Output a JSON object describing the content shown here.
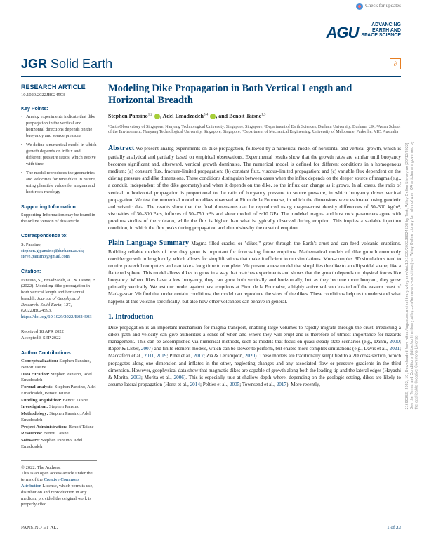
{
  "checkUpdates": "Check for updates",
  "sideText": "21699356, 2022, 10, Downloaded from https://agupubs.onlinelibrary.wiley.com/doi/10.1029/2022JB024593 by Test, Wiley Online Library on [20/12/2022]. See the Terms and Conditions (https://onlinelibrary.wiley.com/terms-and-conditions) on Wiley Online Library for rules of use; OA articles are governed by the applicable Creative Commons License",
  "aguTagline1": "ADVANCING",
  "aguTagline2": "EARTH AND",
  "aguTagline3": "SPACE SCIENCE",
  "journalPrefix": "JGR",
  "journalName": "Solid Earth",
  "openBadge": "∂",
  "left": {
    "researchArticle": "RESEARCH ARTICLE",
    "doi": "10.1029/2022JB024593",
    "keyPointsLabel": "Key Points:",
    "keyPoints": [
      "Analog experiments indicate that dike propagation in the vertical and horizontal directions depends on the buoyancy and source pressure",
      "We define a numerical model in which growth depends on influx and different pressure ratios, which evolve with time",
      "The model reproduces the geometries and velocities for nine dikes in nature, using plausible values for magma and host rock rheology"
    ],
    "supportingLabel": "Supporting Information:",
    "supportingText": "Supporting Information may be found in the online version of this article.",
    "correspondenceLabel": "Correspondence to:",
    "correspondenceName": "S. Pansino,",
    "correspondenceEmail1": "stephen.g.pansino@durham.ac.uk;",
    "correspondenceEmail2": "steve.pansino@gmail.com",
    "citationLabel": "Citation:",
    "citationText1": "Pansino, S., Emadzadeh, A., & Taisne, B. (2022). Modeling dike propagation in both vertical length and horizontal breadth. ",
    "citationItalic": "Journal of Geophysical Research: Solid Earth",
    "citationText2": ", 127, e2022JB024593. ",
    "citationLink": "https://doi.org/10.1029/2022JB024593",
    "received": "Received 18 APR 2022",
    "accepted": "Accepted 8 SEP 2022",
    "contribLabel": "Author Contributions:",
    "contrib": [
      {
        "role": "Conceptualization:",
        "names": "Stephen Pansino, Benoit Taisne"
      },
      {
        "role": "Data curation:",
        "names": "Stephen Pansino, Adel Emadzadeh"
      },
      {
        "role": "Formal analysis:",
        "names": "Stephen Pansino, Adel Emadzadeh, Benoit Taisne"
      },
      {
        "role": "Funding acquisition:",
        "names": "Benoit Taisne"
      },
      {
        "role": "Investigation:",
        "names": "Stephen Pansino"
      },
      {
        "role": "Methodology:",
        "names": "Stephen Pansino, Adel Emadzadeh"
      },
      {
        "role": "Project Administration:",
        "names": "Benoit Taisne"
      },
      {
        "role": "Resources:",
        "names": "Benoit Taisne"
      },
      {
        "role": "Software:",
        "names": "Stephen Pansino, Adel Emadzadeh"
      }
    ],
    "copyright": "© 2022. The Authors.",
    "copyrightText1": "This is an open access article under the terms of the ",
    "copyrightLink": "Creative Commons Attribution",
    "copyrightText2": " License, which permits use, distribution and reproduction in any medium, provided the original work is properly cited."
  },
  "paper": {
    "title": "Modeling Dike Propagation in Both Vertical Length and Horizontal Breadth",
    "author1": "Stephen Pansino",
    "author1sup": "1,2",
    "author2": "Adel Emadzadeh",
    "author2sup": "3,4",
    "author3": "Benoit Taisne",
    "author3sup": "1,3",
    "and": ", and ",
    "comma": ", ",
    "affiliations": "¹Earth Observatory of Singapore, Nanyang Technological University, Singapore, Singapore, ²Department of Earth Sciences, Durham University, Durham, UK, ³Asian School of the Environment, Nanyang Technological University, Singapore, Singapore, ⁴Department of Mechanical Engineering, University of Melbourne, Parkville, VIC, Australia",
    "abstractLabel": "Abstract",
    "abstract": " We present analog experiments on dike propagation, followed by a numerical model of horizontal and vertical growth, which is partially analytical and partially based on empirical observations. Experimental results show that the growth rates are similar until buoyancy becomes significant and, afterward, vertical growth dominates. The numerical model is defined for different conditions in a homogenous medium: (a) constant flux, fracture-limited propagation; (b) constant flux, viscous-limited propagation; and (c) variable flux dependent on the driving pressure and dike dimensions. These conditions distinguish between cases when the influx depends on the deeper source of magma (e.g., a conduit, independent of the dike geometry) and when it depends on the dike, so the influx can change as it grows. In all cases, the ratio of vertical to horizontal propagation is proportional to the ratio of buoyancy pressure to source pressure, in which buoyancy drives vertical propagation. We test the numerical model on dikes observed at Piton de la Fournaise, in which the dimensions were estimated using geodetic and seismic data. The results show that the final dimensions can be reproduced using magma-crust density differences of 50–300 kg/m³, viscosities of 30–300 Pa·s, influxes of 50–750 m³/s and shear moduli of ∼10 GPa. The modeled magma and host rock parameters agree with previous studies of the volcano, while the flux is higher than what is typically observed during eruption. This implies a variable injection condition, in which the flux peaks during propagation and diminishes by the onset of eruption.",
    "plainLabel": "Plain Language Summary",
    "plain": " Magma-filled cracks, or \"dikes,\" grow through the Earth's crust and can feed volcanic eruptions. Building reliable models of how they grow is important for forecasting future eruptions. Mathematical models of dike growth commonly consider growth in length only, which allows for simplifications that make it efficient to run simulations. More-complex 3D simulations tend to require powerful computers and can take a long time to complete. We present a new model that simplifies the dike to an ellipsoidal shape, like a flattened sphere. This model allows dikes to grow in a way that matches experiments and shows that the growth depends on physical forces like buoyancy. When dikes have a low buoyancy, they can grow both vertically and horizontally, but as they become more buoyant, they grow primarily vertically. We test our model against past eruptions at Piton de la Fournaise, a highly active volcano located off the eastern coast of Madagascar. We find that under certain conditions, the model can reproduce the sizes of the dikes. These conditions help us to understand what happens at this volcano specifically, but also how other volcanoes can behave in general.",
    "introHeading": "1. Introduction",
    "introText": "Dike propagation is an important mechanism for magma transport, enabling large volumes to rapidly migrate through the crust. Predicting a dike's path and velocity can give authorities a sense of when and where they will erupt and is therefore of utmost importance for hazards management. This can be accomplished via numerical methods, such as models that focus on quasi-steady-state scenarios (e.g., Dahm, ",
    "introCite1": "2000",
    "introText2": "; Roper & Lister, ",
    "introCite2": "2007",
    "introText3": ") and finite element models, which can be slower to perform, but enable more complex simulations (e.g., Davis et al., ",
    "introCite3": "2021",
    "introText4": "; Maccaferri et al., ",
    "introCite4": "2011",
    "introText5": ", ",
    "introCite5": "2019",
    "introText6": "; Pinel et al., ",
    "introCite6": "2017",
    "introText7": "; Zia & Lecampion, ",
    "introCite7": "2020",
    "introText8": "). These models are traditionally simplified to a 2D cross section, which propagates along one dimension and inflates in the other, neglecting changes and any associated flow or pressure gradients in the third dimension. However, geophysical data show that magmatic dikes are capable of growth along both the leading tip and the lateral edges (Hayashi & Morita, ",
    "introCite8": "2003",
    "introText9": "; Morita et al., ",
    "introCite9": "2006",
    "introText10": "). This is especially true at shallow depth where, depending on the geologic setting, dikes are likely to assume lateral propagation (Horst et al., ",
    "introCite10": "2014",
    "introText11": "; Peltier et al., ",
    "introCite11": "2005",
    "introText12": "; Townsend et al., ",
    "introCite12": "2017",
    "introText13": "). More recently,"
  },
  "footer": {
    "left": "PANSINO ET AL.",
    "right": "1 of 23"
  }
}
